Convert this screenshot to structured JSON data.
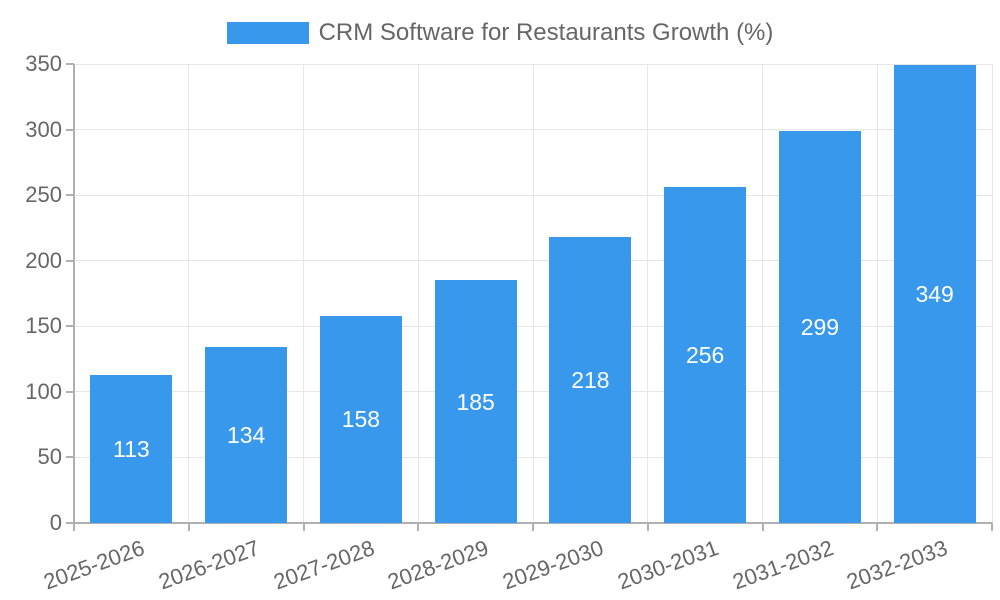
{
  "chart_data": {
    "type": "bar",
    "title": "CRM Software for Restaurants Growth (%)",
    "categories": [
      "2025-2026",
      "2026-2027",
      "2027-2028",
      "2028-2029",
      "2029-2030",
      "2030-2031",
      "2031-2032",
      "2032-2033"
    ],
    "values": [
      113,
      134,
      158,
      185,
      218,
      256,
      299,
      349
    ],
    "xlabel": "",
    "ylabel": "",
    "ylim": [
      0,
      350
    ],
    "yticks": [
      0,
      50,
      100,
      150,
      200,
      250,
      300,
      350
    ],
    "grid": true,
    "legend_position": "top",
    "colors": {
      "bar": "#3898EC",
      "bar_value_text": "#FFFFFF",
      "axis_text": "#666666",
      "gridline": "#E6E6E6",
      "axis_line": "#B0B0B0",
      "background": "#FFFFFF"
    }
  }
}
